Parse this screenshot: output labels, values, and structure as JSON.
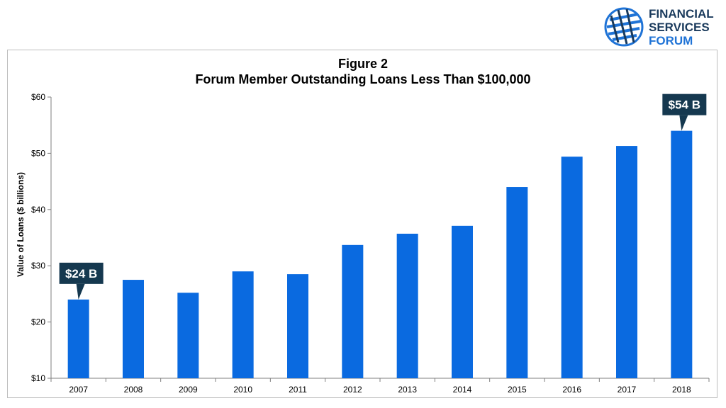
{
  "logo": {
    "line1": "FINANCIAL",
    "line2": "SERVICES",
    "line3": "FORUM",
    "colors": {
      "dark": "#1a3a5c",
      "blue": "#1f73d6",
      "globe": "#1f73d6"
    }
  },
  "chart_data": {
    "type": "bar",
    "title": "Figure 2",
    "subtitle": "Forum Member Outstanding Loans Less Than $100,000",
    "xlabel": "",
    "ylabel": "Value of Loans ($ billions)",
    "categories": [
      "2007",
      "2008",
      "2009",
      "2010",
      "2011",
      "2012",
      "2013",
      "2014",
      "2015",
      "2016",
      "2017",
      "2018"
    ],
    "values": [
      24.0,
      27.5,
      25.2,
      29.0,
      28.5,
      33.7,
      35.7,
      37.1,
      44.0,
      49.4,
      51.3,
      54.0
    ],
    "ylim": [
      10,
      60
    ],
    "yticks": [
      10,
      20,
      30,
      40,
      50,
      60
    ],
    "ytick_labels": [
      "$10",
      "$20",
      "$30",
      "$40",
      "$50",
      "$60"
    ],
    "grid": false,
    "bar_color": "#0a6ae0",
    "annotations": [
      {
        "category": "2007",
        "text": "$24 B"
      },
      {
        "category": "2018",
        "text": "$54 B"
      }
    ],
    "callout_color": "#15384f"
  }
}
